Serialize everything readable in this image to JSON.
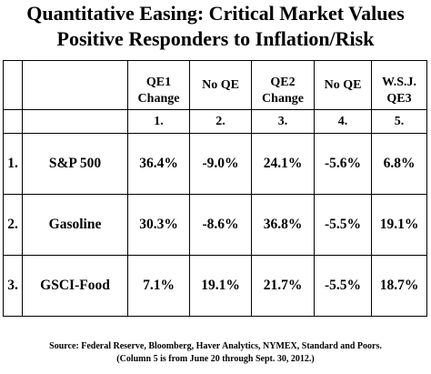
{
  "title": {
    "line1": "Quantitative Easing:  Critical Market Values",
    "line2": "Positive Responders to Inflation/Risk"
  },
  "table": {
    "headers": [
      {
        "line1": "QE1",
        "line2": "Change"
      },
      {
        "line1": "No QE",
        "line2": ""
      },
      {
        "line1": "QE2",
        "line2": "Change"
      },
      {
        "line1": "No QE",
        "line2": ""
      },
      {
        "line1": "W.S.J.",
        "line2": "QE3"
      }
    ],
    "column_numbers": [
      "1.",
      "2.",
      "3.",
      "4.",
      "5."
    ],
    "rows": [
      {
        "index": "1.",
        "name": "S&P 500",
        "values": [
          "36.4%",
          "-9.0%",
          "24.1%",
          "-5.6%",
          "6.8%"
        ]
      },
      {
        "index": "2.",
        "name": "Gasoline",
        "values": [
          "30.3%",
          "-8.6%",
          "36.8%",
          "-5.5%",
          "19.1%"
        ]
      },
      {
        "index": "3.",
        "name": "GSCI-Food",
        "values": [
          "7.1%",
          "19.1%",
          "21.7%",
          "-5.5%",
          "18.7%"
        ]
      }
    ]
  },
  "source": {
    "line1": "Source: Federal Reserve, Bloomberg, Haver Analytics, NYMEX, Standard and Poors.",
    "line2": "(Column 5 is from June 20 through Sept. 30, 2012.)"
  }
}
